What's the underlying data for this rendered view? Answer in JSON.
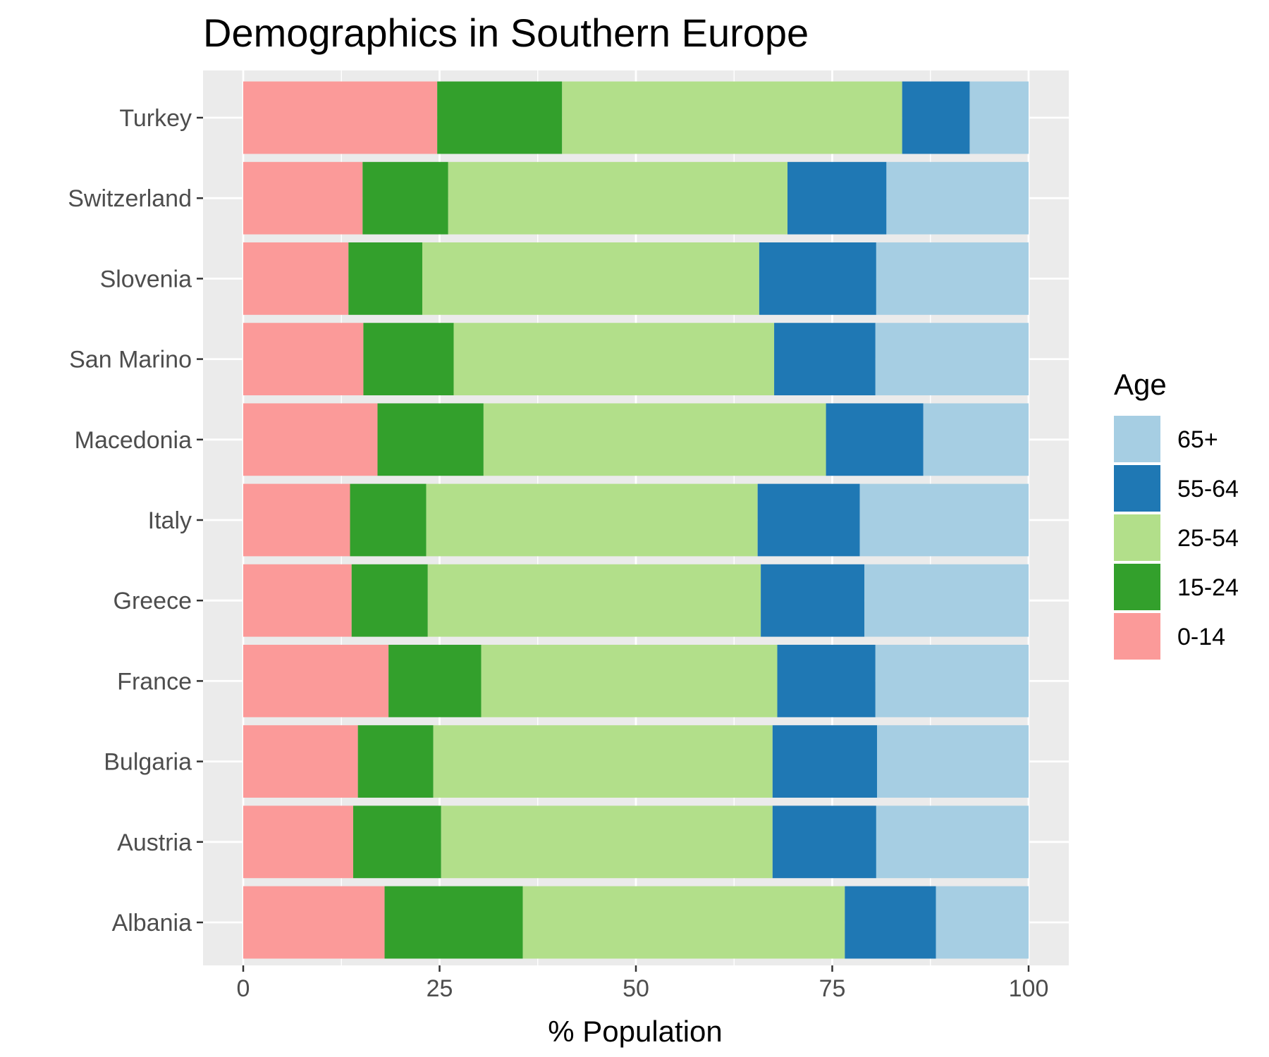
{
  "chart_data": {
    "type": "bar",
    "orientation": "horizontal",
    "stacked": true,
    "title": "Demographics in Southern Europe",
    "xlabel": "% Population",
    "ylabel": "",
    "xlim": [
      0,
      100
    ],
    "x_ticks": [
      "0",
      "25",
      "50",
      "75",
      "100"
    ],
    "categories": [
      "Albania",
      "Austria",
      "Bulgaria",
      "France",
      "Greece",
      "Italy",
      "Macedonia",
      "San Marino",
      "Slovenia",
      "Switzerland",
      "Turkey"
    ],
    "series": [
      {
        "name": "0-14",
        "color": "#fb9a99",
        "values": [
          18.0,
          14.0,
          14.6,
          18.5,
          13.8,
          13.6,
          17.1,
          15.3,
          13.4,
          15.2,
          24.7
        ]
      },
      {
        "name": "15-24",
        "color": "#33a02c",
        "values": [
          17.6,
          11.2,
          9.6,
          11.8,
          9.7,
          9.7,
          13.5,
          11.5,
          9.4,
          10.9,
          15.9
        ]
      },
      {
        "name": "25-54",
        "color": "#b2df8a",
        "values": [
          41.0,
          42.2,
          43.2,
          37.7,
          42.4,
          42.2,
          43.6,
          40.8,
          42.9,
          43.2,
          43.3
        ]
      },
      {
        "name": "55-64",
        "color": "#1f78b4",
        "values": [
          11.6,
          13.2,
          13.3,
          12.5,
          13.2,
          13.0,
          12.4,
          12.9,
          14.9,
          12.6,
          8.6
        ]
      },
      {
        "name": "65+",
        "color": "#a6cee3",
        "values": [
          11.8,
          19.4,
          19.3,
          19.5,
          20.9,
          21.5,
          13.4,
          19.5,
          19.4,
          18.1,
          7.5
        ]
      }
    ],
    "legend": {
      "title": "Age",
      "placement": "right",
      "order": [
        "65+",
        "55-64",
        "25-54",
        "15-24",
        "0-14"
      ]
    },
    "grid": true,
    "panel_background": "#ebebeb",
    "grid_color": "#ffffff"
  }
}
